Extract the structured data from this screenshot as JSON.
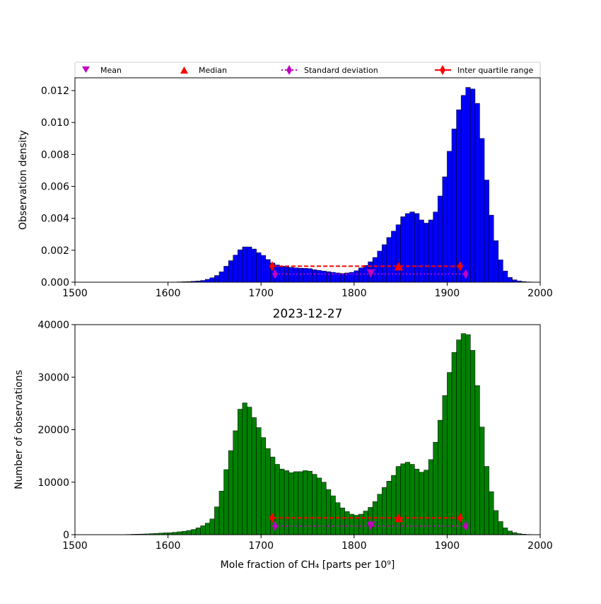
{
  "legend": {
    "mean": "Mean",
    "median": "Median",
    "std": "Standard deviation",
    "iqr": "Inter quartile range"
  },
  "colors": {
    "density_bars": "#0000ff",
    "count_bars": "#008000",
    "mean_marker": "#bf00bf",
    "median_marker": "#ff0000",
    "std_line": "#bf00bf",
    "iqr_line": "#ff0000"
  },
  "chart_data": [
    {
      "type": "bar",
      "ylabel": "Observation density",
      "xlim": [
        1500,
        2000
      ],
      "ylim": [
        0,
        0.0128
      ],
      "xticks": [
        "1500",
        "1600",
        "1700",
        "1800",
        "1900",
        "2000"
      ],
      "yticks": [
        "0.000",
        "0.002",
        "0.004",
        "0.006",
        "0.008",
        "0.010",
        "0.012"
      ],
      "bin_width": 5,
      "x": [
        1555,
        1560,
        1565,
        1570,
        1575,
        1580,
        1585,
        1590,
        1595,
        1600,
        1605,
        1610,
        1615,
        1620,
        1625,
        1630,
        1635,
        1640,
        1645,
        1650,
        1655,
        1660,
        1665,
        1670,
        1675,
        1680,
        1685,
        1690,
        1695,
        1700,
        1705,
        1710,
        1715,
        1720,
        1725,
        1730,
        1735,
        1740,
        1745,
        1750,
        1755,
        1760,
        1765,
        1770,
        1775,
        1780,
        1785,
        1790,
        1795,
        1800,
        1805,
        1810,
        1815,
        1820,
        1825,
        1830,
        1835,
        1840,
        1845,
        1850,
        1855,
        1860,
        1865,
        1870,
        1875,
        1880,
        1885,
        1890,
        1895,
        1900,
        1905,
        1910,
        1915,
        1920,
        1925,
        1930,
        1935,
        1940,
        1945,
        1950,
        1955,
        1960,
        1965,
        1970,
        1975,
        1980,
        1985,
        1990
      ],
      "values": [
        0,
        0,
        0,
        0,
        0,
        0,
        0,
        0,
        0,
        0,
        1e-05,
        2e-05,
        3e-05,
        4e-05,
        6e-05,
        8e-05,
        0.00011,
        0.00018,
        0.00028,
        0.00042,
        0.00065,
        0.001,
        0.00135,
        0.0017,
        0.00203,
        0.00221,
        0.00221,
        0.00208,
        0.00185,
        0.00168,
        0.00142,
        0.0012,
        0.00108,
        0.00101,
        0.00097,
        0.00093,
        0.0009,
        0.00088,
        0.00087,
        0.00085,
        0.00078,
        0.00074,
        0.0007,
        0.00066,
        0.00062,
        0.00058,
        0.00055,
        0.00058,
        0.00062,
        0.00072,
        0.0009,
        0.00105,
        0.00128,
        0.00155,
        0.00195,
        0.00235,
        0.0028,
        0.0032,
        0.0036,
        0.0041,
        0.0043,
        0.0044,
        0.0043,
        0.0039,
        0.0037,
        0.0039,
        0.0044,
        0.0054,
        0.0066,
        0.0082,
        0.0096,
        0.0108,
        0.0117,
        0.0122,
        0.0121,
        0.0112,
        0.009,
        0.0064,
        0.0042,
        0.0026,
        0.0014,
        0.0007,
        0.0003,
        0.00015,
        8e-05,
        4e-05,
        2e-05,
        1e-05
      ],
      "stats": {
        "mean": 1818,
        "median": 1848,
        "std_range": [
          1715,
          1920
        ],
        "iqr_range": [
          1712,
          1914
        ],
        "mean_median_y": 0.001,
        "std_y": 0.00051,
        "mean_y": 0.00055
      }
    },
    {
      "type": "bar",
      "title": "2023-12-27",
      "xlabel": "Mole fraction of CH₄ [parts per 10⁹]",
      "ylabel": "Number of observations",
      "xlim": [
        1500,
        2000
      ],
      "ylim": [
        0,
        40000
      ],
      "xticks": [
        "1500",
        "1600",
        "1700",
        "1800",
        "1900",
        "2000"
      ],
      "yticks": [
        "0",
        "10000",
        "20000",
        "30000",
        "40000"
      ],
      "bin_width": 5,
      "x": [
        1555,
        1560,
        1565,
        1570,
        1575,
        1580,
        1585,
        1590,
        1595,
        1600,
        1605,
        1610,
        1615,
        1620,
        1625,
        1630,
        1635,
        1640,
        1645,
        1650,
        1655,
        1660,
        1665,
        1670,
        1675,
        1680,
        1685,
        1690,
        1695,
        1700,
        1705,
        1710,
        1715,
        1720,
        1725,
        1730,
        1735,
        1740,
        1745,
        1750,
        1755,
        1760,
        1765,
        1770,
        1775,
        1780,
        1785,
        1790,
        1795,
        1800,
        1805,
        1810,
        1815,
        1820,
        1825,
        1830,
        1835,
        1840,
        1845,
        1850,
        1855,
        1860,
        1865,
        1870,
        1875,
        1880,
        1885,
        1890,
        1895,
        1900,
        1905,
        1910,
        1915,
        1920,
        1925,
        1930,
        1935,
        1940,
        1945,
        1950,
        1955,
        1960,
        1965,
        1970,
        1975,
        1980,
        1985,
        1990
      ],
      "values": [
        50,
        80,
        100,
        120,
        150,
        200,
        250,
        300,
        350,
        380,
        450,
        550,
        650,
        800,
        1000,
        1300,
        1700,
        2200,
        3000,
        5300,
        8300,
        12400,
        16000,
        19800,
        23900,
        25100,
        24300,
        22300,
        20400,
        18500,
        16400,
        14800,
        13400,
        12500,
        12200,
        11800,
        12000,
        12000,
        12200,
        12100,
        11500,
        10800,
        10000,
        8600,
        7400,
        6100,
        5100,
        4400,
        3900,
        3700,
        3900,
        4500,
        5200,
        6300,
        7700,
        9000,
        10200,
        11300,
        13000,
        13500,
        13800,
        13400,
        12500,
        11900,
        12300,
        14300,
        17600,
        21800,
        26500,
        30900,
        34700,
        37100,
        38300,
        38100,
        35100,
        28400,
        20500,
        13000,
        8200,
        4600,
        2500,
        1300,
        700,
        400,
        200,
        100,
        50,
        20
      ],
      "stats": {
        "mean": 1818,
        "median": 1848,
        "std_range": [
          1715,
          1920
        ],
        "iqr_range": [
          1712,
          1914
        ],
        "mean_median_y": 3200,
        "std_y": 1650,
        "mean_y": 1700
      }
    }
  ]
}
